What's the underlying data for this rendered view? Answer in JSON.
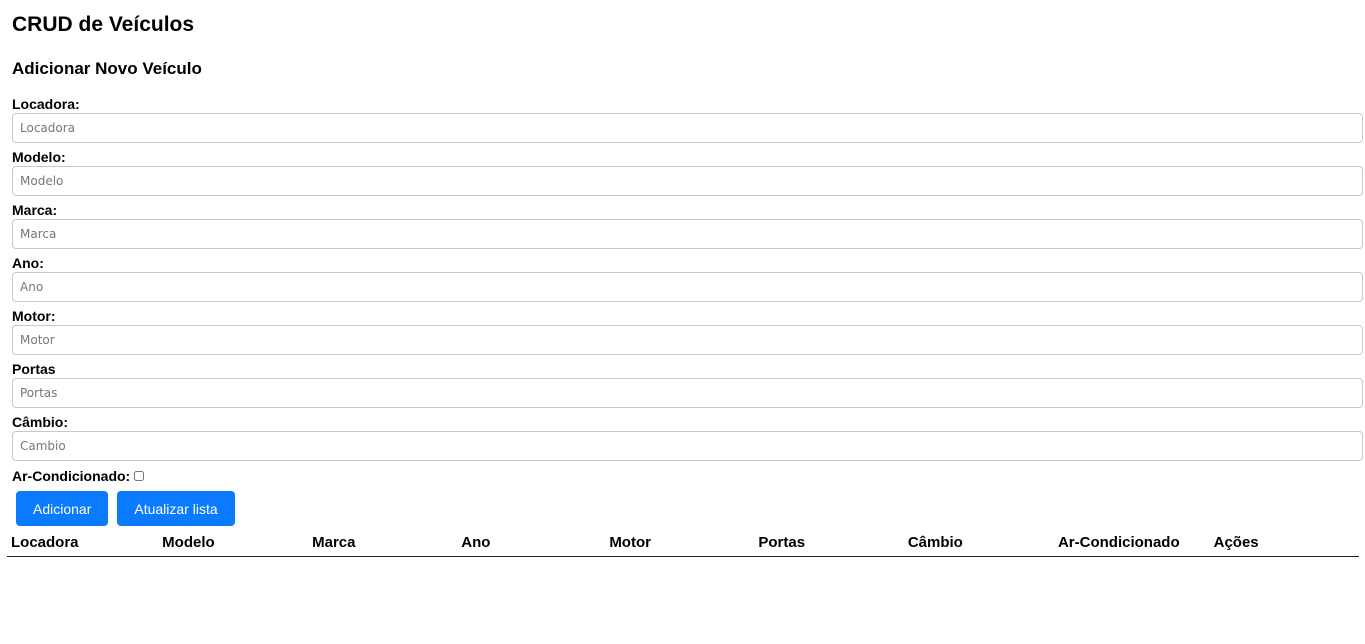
{
  "page": {
    "title": "CRUD de Veículos",
    "subtitle": "Adicionar Novo Veículo"
  },
  "form": {
    "fields": [
      {
        "label": "Locadora:",
        "placeholder": "Locadora",
        "value": ""
      },
      {
        "label": "Modelo:",
        "placeholder": "Modelo",
        "value": ""
      },
      {
        "label": "Marca:",
        "placeholder": "Marca",
        "value": ""
      },
      {
        "label": "Ano:",
        "placeholder": "Ano",
        "value": ""
      },
      {
        "label": "Motor:",
        "placeholder": "Motor",
        "value": ""
      },
      {
        "label": "Portas",
        "placeholder": "Portas",
        "value": ""
      },
      {
        "label": "Câmbio:",
        "placeholder": "Cambio",
        "value": ""
      }
    ],
    "ac_label": "Ar-Condicionado:",
    "ac_checked": false,
    "add_button": "Adicionar",
    "refresh_button": "Atualizar lista"
  },
  "table": {
    "headers": [
      "Locadora",
      "Modelo",
      "Marca",
      "Ano",
      "Motor",
      "Portas",
      "Câmbio",
      "Ar-Condicionado",
      "Ações"
    ]
  },
  "colors": {
    "button_bg": "#0a7bff",
    "input_border": "#c8c8c8"
  }
}
